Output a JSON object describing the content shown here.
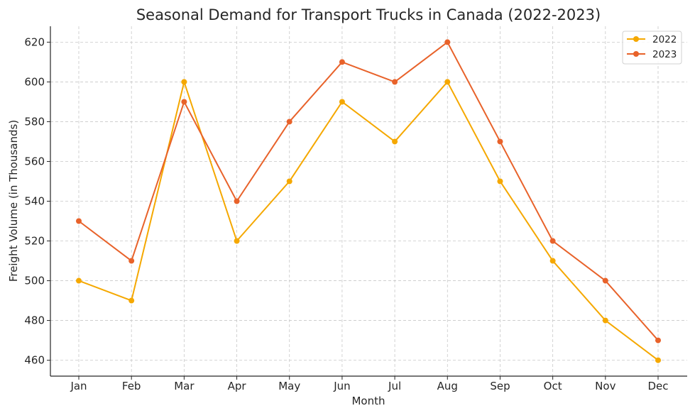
{
  "chart_data": {
    "type": "line",
    "title": "Seasonal Demand for Transport Trucks in Canada (2022-2023)",
    "xlabel": "Month",
    "ylabel": "Freight Volume (in Thousands)",
    "categories": [
      "Jan",
      "Feb",
      "Mar",
      "Apr",
      "May",
      "Jun",
      "Jul",
      "Aug",
      "Sep",
      "Oct",
      "Nov",
      "Dec"
    ],
    "ylim": [
      452,
      628
    ],
    "yticks": [
      460,
      480,
      500,
      520,
      540,
      560,
      580,
      600,
      620
    ],
    "grid": true,
    "legend_position": "top-right",
    "series": [
      {
        "name": "2022",
        "color": "#F5A800",
        "values": [
          500,
          490,
          600,
          520,
          550,
          590,
          570,
          600,
          550,
          510,
          480,
          460
        ]
      },
      {
        "name": "2023",
        "color": "#E8622A",
        "values": [
          530,
          510,
          590,
          540,
          580,
          610,
          600,
          620,
          570,
          520,
          500,
          470
        ]
      }
    ]
  }
}
